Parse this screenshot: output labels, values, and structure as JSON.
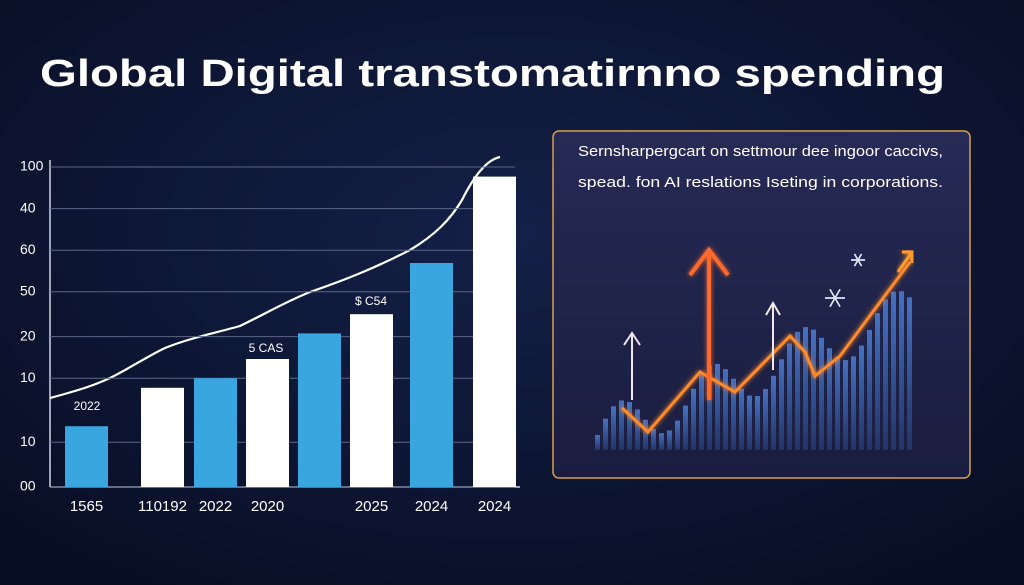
{
  "chart_data": {
    "type": "bar",
    "title": "Global Digital transtomatirnno spending",
    "categories": [
      "1565",
      "110192",
      "2022",
      "2020",
      null,
      "2025",
      "2024",
      "2024"
    ],
    "values": [
      19,
      31,
      34,
      40,
      48,
      54,
      70,
      97
    ],
    "colors": [
      "#3aa6e0",
      "#ffffff",
      "#3aa6e0",
      "#ffffff",
      "#3aa6e0",
      "#ffffff",
      "#3aa6e0",
      "#ffffff"
    ],
    "ylim": [
      0,
      100
    ],
    "yticks": [
      100,
      {
        "value": 87,
        "label": "40"
      },
      {
        "value": 74,
        "label": "60"
      },
      {
        "value": 61,
        "label": "50"
      },
      {
        "value": 47,
        "label": "20"
      },
      {
        "value": 34,
        "label": "10"
      },
      {
        "value": 14,
        "label": "10"
      },
      {
        "value": 0,
        "label": "00"
      }
    ],
    "grid": true,
    "annotations": [
      "2022",
      "5 CAS",
      "$ C54"
    ],
    "panel_text": [
      "Sernsharpergcart on settmour dee ingoor caccivs,",
      "spead. fon AI reslations Iseting in corporations."
    ]
  }
}
